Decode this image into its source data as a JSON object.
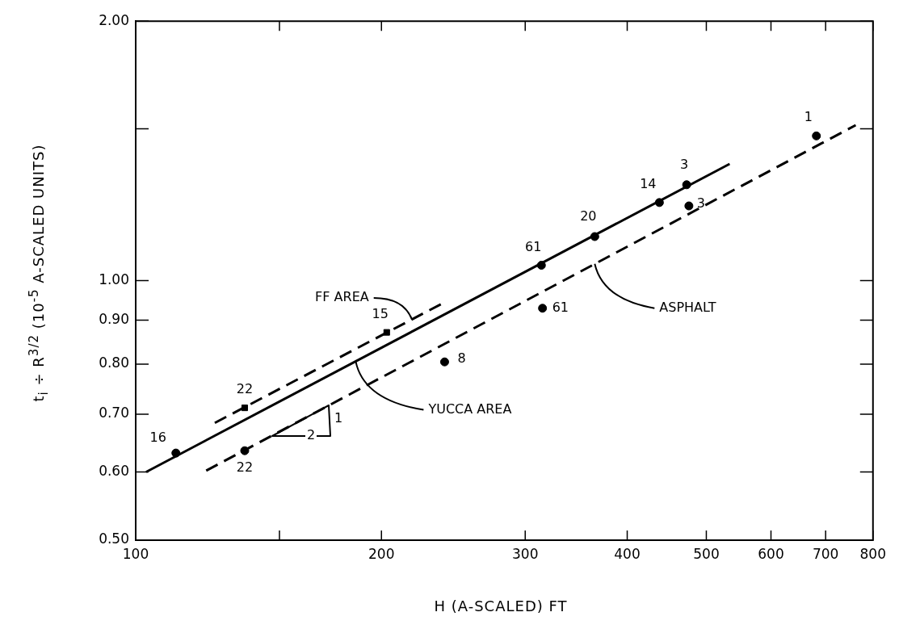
{
  "chart_data": {
    "type": "scatter",
    "xlabel": "H (A-SCALED) FT",
    "ylabel": "t$_{i}$ ÷ R$^{3/2}$ (10$^{-5}$ A-SCALED UNITS)",
    "log": "xy",
    "grid": false,
    "legend": false,
    "xlim": [
      100,
      800
    ],
    "xticks": [
      100,
      {
        "value": 150,
        "label": null
      },
      200,
      300,
      400,
      500,
      600,
      700,
      800
    ],
    "ylim": [
      0.5,
      2
    ],
    "yticks": [
      {
        "value": 0.5,
        "label": "0.50"
      },
      {
        "value": 0.6,
        "label": "0.60"
      },
      {
        "value": 0.7,
        "label": "0.70"
      },
      {
        "value": 0.8,
        "label": "0.80"
      },
      {
        "value": 0.9,
        "label": "0.90"
      },
      {
        "value": 1,
        "label": "1.00"
      },
      {
        "value": 1.5,
        "label": null
      },
      {
        "value": 2,
        "label": "2.00"
      }
    ],
    "series": [
      {
        "type": "scatter",
        "marker": "circle",
        "color": "#000000",
        "x": [
          112,
          314,
          365,
          438,
          473
        ],
        "values": [
          0.631,
          1.042,
          1.125,
          1.232,
          1.292
        ]
      },
      {
        "type": "scatter",
        "marker": "square",
        "color": "#000000",
        "x": [
          136,
          203
        ],
        "values": [
          0.712,
          0.871
        ]
      },
      {
        "type": "scatter",
        "marker": "circle",
        "color": "#000000",
        "x": [
          136,
          239,
          315,
          476,
          682
        ],
        "values": [
          0.635,
          0.805,
          0.929,
          1.221,
          1.472
        ]
      },
      {
        "type": "line",
        "marker": "none",
        "line_style": "solid",
        "color": "#000000",
        "x": [
          103,
          534
        ],
        "values": [
          0.6,
          1.366
        ]
      },
      {
        "type": "line",
        "marker": "none",
        "line_style": "dashed",
        "color": "#000000",
        "x": [
          125,
          239
        ],
        "values": [
          0.684,
          0.944
        ]
      },
      {
        "type": "line",
        "marker": "none",
        "line_style": "dashed",
        "color": "#000000",
        "x": [
          122,
          762
        ],
        "values": [
          0.602,
          1.515
        ]
      }
    ],
    "annotations": [
      {
        "text": "16",
        "x": 112,
        "y": 0.631
      },
      {
        "text": "22",
        "x": 136,
        "y": 0.712
      },
      {
        "text": "15",
        "x": 203,
        "y": 0.871
      },
      {
        "text": "61",
        "x": 314,
        "y": 1.042
      },
      {
        "text": "20",
        "x": 365,
        "y": 1.125
      },
      {
        "text": "14",
        "x": 438,
        "y": 1.232
      },
      {
        "text": "3",
        "x": 473,
        "y": 1.292
      },
      {
        "text": "22",
        "x": 136,
        "y": 0.635
      },
      {
        "text": "8",
        "x": 239,
        "y": 0.805
      },
      {
        "text": "61",
        "x": 315,
        "y": 0.929
      },
      {
        "text": "3",
        "x": 476,
        "y": 1.221
      },
      {
        "text": "1",
        "x": 682,
        "y": 1.472
      },
      {
        "text": "FF AREA",
        "x": 218,
        "y": 0.901
      },
      {
        "text": "YUCCA AREA",
        "x": 186,
        "y": 0.806
      },
      {
        "text": "ASPHALT",
        "x": 365,
        "y": 1.046
      },
      "2",
      "1"
    ]
  }
}
